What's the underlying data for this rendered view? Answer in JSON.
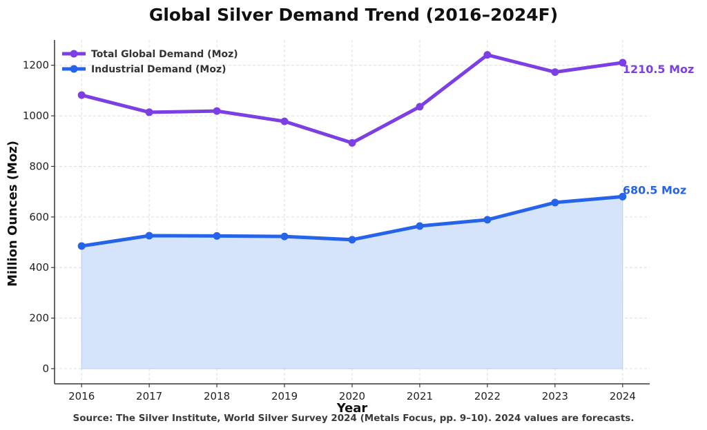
{
  "chart_data": {
    "type": "line",
    "title": "Global Silver Demand Trend (2016–2024F)",
    "xlabel": "Year",
    "ylabel": "Million Ounces (Moz)",
    "x": [
      2016,
      2017,
      2018,
      2019,
      2020,
      2021,
      2022,
      2023,
      2024
    ],
    "x_ticks": [
      "2016",
      "2017",
      "2018",
      "2019",
      "2020",
      "2021",
      "2022",
      "2023",
      "2024"
    ],
    "y_ticks": [
      "0",
      "200",
      "400",
      "600",
      "800",
      "1000",
      "1200"
    ],
    "ylim": [
      -60,
      1300
    ],
    "xlim": [
      2015.6,
      2024.4
    ],
    "grid": true,
    "legend_position": "top-left",
    "series": [
      {
        "name": "Total Global Demand (Moz)",
        "color": "#7b3fe4",
        "values": [
          1082,
          1014,
          1019,
          978,
          893,
          1036,
          1241,
          1173,
          1210.5
        ],
        "filled": false,
        "end_label": "1210.5 Moz"
      },
      {
        "name": "Industrial Demand (Moz)",
        "color": "#2563eb",
        "values": [
          485,
          526,
          525,
          523,
          510,
          564,
          589,
          657,
          680.5
        ],
        "filled": true,
        "fill_color": "#d6e4fb",
        "end_label": "680.5 Moz"
      }
    ],
    "source_note": "Source: The Silver Institute, World Silver Survey 2024 (Metals Focus, pp. 9–10). 2024 values are forecasts."
  }
}
